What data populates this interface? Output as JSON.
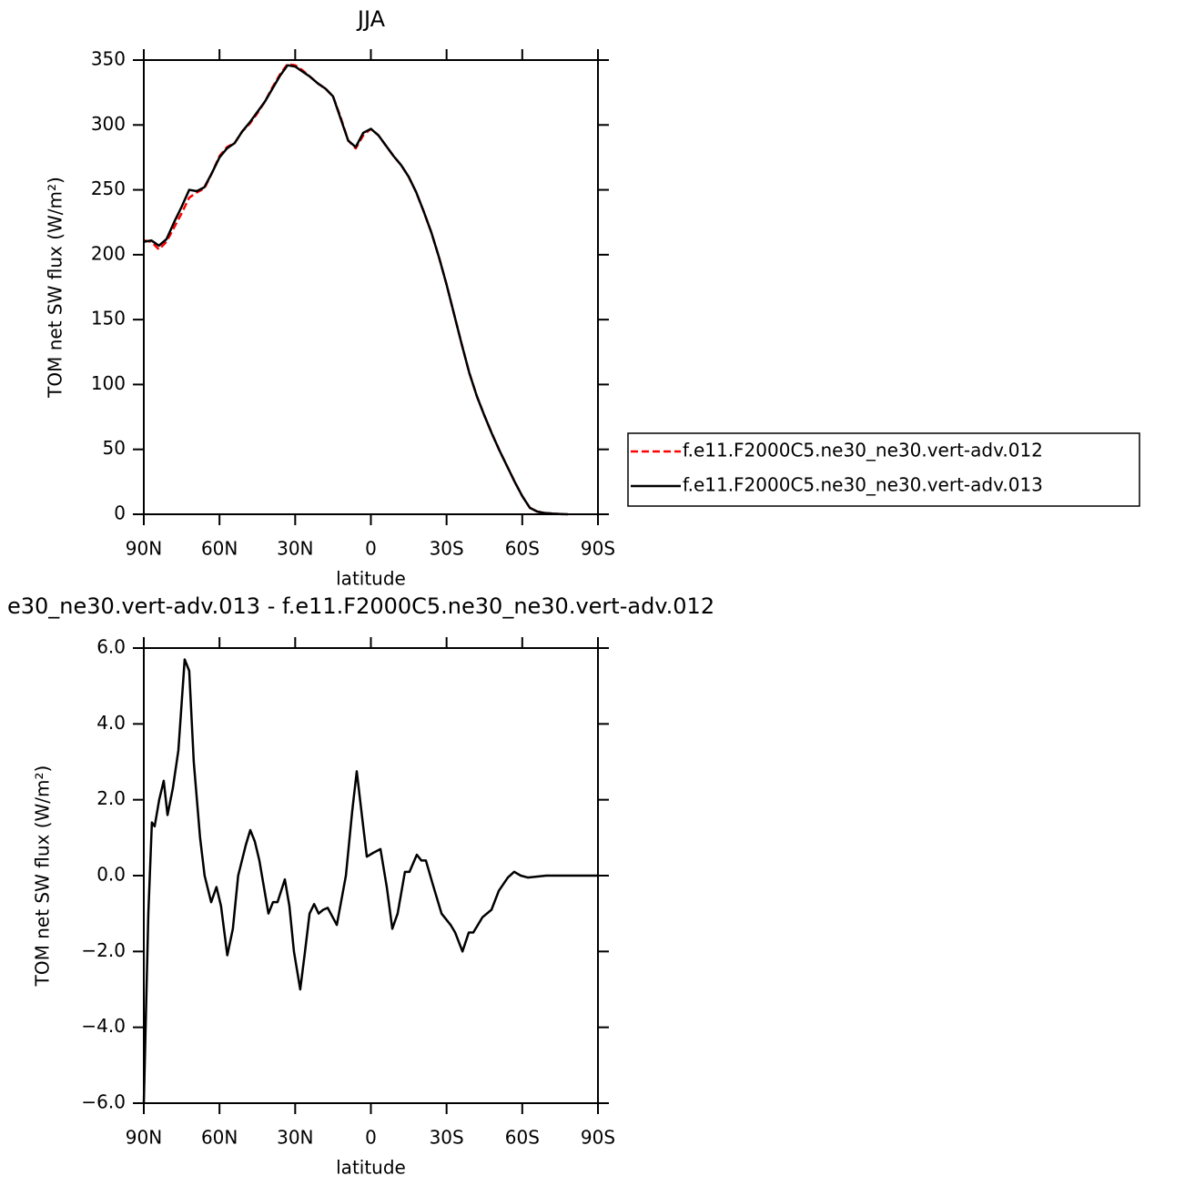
{
  "chart_data": [
    {
      "type": "line",
      "title": "JJA",
      "xlabel": "latitude",
      "ylabel": "TOM net SW flux (W/m²)",
      "x": [
        90,
        87,
        84,
        81,
        78,
        75,
        72,
        69,
        66,
        63,
        60,
        57,
        54,
        51,
        48,
        45,
        42,
        39,
        36,
        33,
        30,
        27,
        24,
        21,
        18,
        15,
        12,
        9,
        6,
        3,
        0,
        -3,
        -6,
        -9,
        -12,
        -15,
        -18,
        -21,
        -24,
        -27,
        -30,
        -33,
        -36,
        -39,
        -42,
        -45,
        -48,
        -51,
        -54,
        -57,
        -60,
        -63,
        -66,
        -69,
        -72,
        -75,
        -78,
        -81,
        -84,
        -87,
        -90
      ],
      "series": [
        {
          "name": "f.e11.F2000C5.ne30_ne30.vert-adv.012",
          "color": "#ff0000",
          "line_style": "dashed",
          "values": [
            211,
            210,
            204,
            210,
            221,
            232,
            244,
            248,
            251,
            263,
            276,
            283,
            286,
            295,
            301,
            309,
            318,
            329,
            339,
            347,
            346,
            342,
            337,
            332,
            328,
            322,
            306,
            288,
            282,
            292,
            297,
            292,
            284,
            276,
            269,
            260,
            248,
            233,
            217,
            198,
            177,
            154,
            131,
            109,
            91,
            76,
            62,
            49,
            37,
            25,
            14,
            5,
            2,
            1,
            0.5,
            0.2,
            0,
            null,
            null,
            null,
            null
          ]
        },
        {
          "name": "f.e11.F2000C5.ne30_ne30.vert-adv.013",
          "color": "#000000",
          "line_style": "solid",
          "values": [
            210,
            211,
            207,
            212,
            225,
            237,
            250,
            249,
            252,
            263,
            275,
            282,
            286,
            295,
            302,
            310,
            318,
            328,
            338,
            346,
            345,
            341,
            337,
            332,
            328,
            322,
            305,
            288,
            283,
            294,
            297,
            292,
            284,
            276,
            269,
            260,
            248,
            233,
            217,
            198,
            177,
            154,
            131,
            109,
            91,
            76,
            62,
            49,
            37,
            25,
            14,
            5,
            2,
            1,
            0.5,
            0.2,
            0,
            null,
            null,
            null,
            null
          ]
        }
      ],
      "xlim": [
        90,
        -90
      ],
      "ylim": [
        0,
        350
      ],
      "xticks": [
        {
          "value": 90,
          "label": "90N"
        },
        {
          "value": 60,
          "label": "60N"
        },
        {
          "value": 30,
          "label": "30N"
        },
        0,
        {
          "value": -30,
          "label": "30S"
        },
        {
          "value": -60,
          "label": "60S"
        },
        {
          "value": -90,
          "label": "90S"
        }
      ],
      "yticks": [
        0,
        50,
        100,
        150,
        200,
        250,
        300,
        350
      ],
      "legend": "right"
    },
    {
      "type": "line",
      "title": "e30_ne30.vert-adv.013 - f.e11.F2000C5.ne30_ne30.vert-adv.012",
      "xlabel": "latitude",
      "ylabel": "TOM net SW flux (W/m²)",
      "x": [
        90,
        88.2,
        86.8,
        85.7,
        83.9,
        82.1,
        80.6,
        78.5,
        76.3,
        73.8,
        72,
        70.2,
        67.7,
        65.9,
        63.3,
        61.2,
        59.4,
        56.9,
        54.7,
        52.6,
        49.6,
        47.8,
        46,
        44.2,
        42.4,
        40.6,
        38.8,
        37,
        34.1,
        32.3,
        30.5,
        28,
        26.1,
        24.3,
        22.5,
        20.7,
        18.9,
        17.1,
        13.5,
        9.9,
        7.4,
        5.6,
        3.4,
        1.6,
        -0.9,
        -3.8,
        -6.3,
        -8.5,
        -10.6,
        -13.5,
        -15.3,
        -18.2,
        -20,
        -21.8,
        -24.4,
        -28,
        -31.6,
        -33.4,
        -36.3,
        -38.8,
        -40.6,
        -44.2,
        -47.8,
        -50.7,
        -54.3,
        -56.8,
        -59.4,
        -62.2,
        -69.5,
        -90
      ],
      "series": [
        {
          "color": "#000000",
          "line_style": "solid",
          "values": [
            -6.0,
            -1.0,
            1.4,
            1.3,
            2.0,
            2.5,
            1.6,
            2.3,
            3.3,
            5.7,
            5.4,
            3.0,
            1.0,
            0.0,
            -0.7,
            -0.3,
            -0.8,
            -2.1,
            -1.4,
            0.0,
            0.8,
            1.2,
            0.9,
            0.4,
            -0.3,
            -1.0,
            -0.7,
            -0.7,
            -0.1,
            -0.8,
            -2.0,
            -3.0,
            -2.0,
            -1.0,
            -0.75,
            -1.0,
            -0.9,
            -0.85,
            -1.3,
            0.0,
            1.7,
            2.75,
            1.5,
            0.5,
            0.6,
            0.7,
            -0.3,
            -1.4,
            -1.0,
            0.1,
            0.1,
            0.55,
            0.4,
            0.4,
            -0.2,
            -1.0,
            -1.3,
            -1.5,
            -2.0,
            -1.5,
            -1.5,
            -1.1,
            -0.9,
            -0.4,
            -0.05,
            0.1,
            0.0,
            -0.05,
            0.0,
            0.0
          ]
        }
      ],
      "xlim": [
        90,
        -90
      ],
      "ylim": [
        -6,
        6
      ],
      "xticks": [
        {
          "value": 90,
          "label": "90N"
        },
        {
          "value": 60,
          "label": "60N"
        },
        {
          "value": 30,
          "label": "30N"
        },
        0,
        {
          "value": -30,
          "label": "30S"
        },
        {
          "value": -60,
          "label": "60S"
        },
        {
          "value": -90,
          "label": "90S"
        }
      ],
      "yticks": [
        {
          "value": -6,
          "label": "−6.0"
        },
        {
          "value": -4,
          "label": "−4.0"
        },
        {
          "value": -2,
          "label": "−2.0"
        },
        {
          "value": 0,
          "label": "0.0"
        },
        {
          "value": 2,
          "label": "2.0"
        },
        {
          "value": 4,
          "label": "4.0"
        },
        {
          "value": 6,
          "label": "6.0"
        }
      ]
    }
  ]
}
